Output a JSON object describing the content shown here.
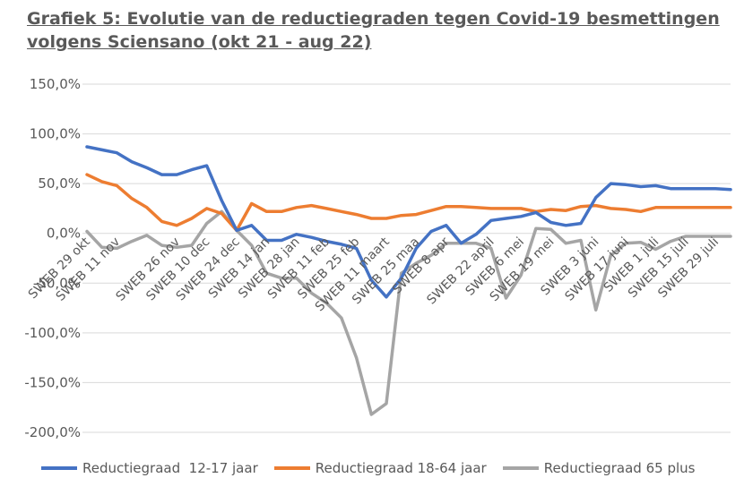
{
  "title_line1": "Grafiek 5: Evolutie van de reductiegraden tegen Covid-19 besmettingen",
  "title_line2": "volgens Sciensano (okt 21 - aug 22)",
  "chart_data": {
    "type": "line",
    "ylim": [
      -200,
      150
    ],
    "yticks": [
      150,
      100,
      50,
      0,
      -50,
      -100,
      -150,
      -200
    ],
    "ytick_labels": [
      "150,0%",
      "100,0%",
      "50,0%",
      "0,0%",
      "-50,0%",
      "-100,0%",
      "-150,0%",
      "-200,0%"
    ],
    "grid": "horizontal",
    "legend_position": "bottom",
    "n_points": 44,
    "xtick_labels": [
      {
        "index": 0,
        "label": "SWEB 29 okt"
      },
      {
        "index": 2,
        "label": "SWEB 11 nov"
      },
      {
        "index": 6,
        "label": "SWEB 26 nov"
      },
      {
        "index": 8,
        "label": "SWEB 10 dec"
      },
      {
        "index": 10,
        "label": "SWEB 24 dec"
      },
      {
        "index": 12,
        "label": "SWEB 14 jan"
      },
      {
        "index": 14,
        "label": "SWEB 28 jan"
      },
      {
        "index": 16,
        "label": "SWEB 11 feb"
      },
      {
        "index": 18,
        "label": "SWEB 25 feb"
      },
      {
        "index": 20,
        "label": "SWEB 11 maart"
      },
      {
        "index": 22,
        "label": "SWEB 25 maa"
      },
      {
        "index": 24,
        "label": "SWEB 8 apr"
      },
      {
        "index": 27,
        "label": "SWEB 22 april"
      },
      {
        "index": 29,
        "label": "SWEB 6 mei"
      },
      {
        "index": 31,
        "label": "SWEB 19 mei"
      },
      {
        "index": 34,
        "label": "SWEB 3 juni"
      },
      {
        "index": 36,
        "label": "SWEB 17 juni"
      },
      {
        "index": 38,
        "label": "SWEB 1 juli"
      },
      {
        "index": 40,
        "label": "SWEB 15 juli"
      },
      {
        "index": 42,
        "label": "SWEB 29 juli"
      }
    ],
    "series": [
      {
        "name": "Reductiegraad  12-17 jaar",
        "color": "#4472C4",
        "values": [
          87,
          84,
          81,
          72,
          66,
          59,
          59,
          64,
          68,
          33,
          3,
          8,
          -7,
          -7,
          -1,
          -4,
          -8,
          -11,
          -15,
          -47,
          -64,
          -45,
          -15,
          2,
          8,
          -10,
          -1,
          13,
          15,
          17,
          21,
          11,
          8,
          10,
          36,
          50,
          49,
          47,
          48,
          45,
          45,
          45,
          45,
          44
        ]
      },
      {
        "name": "Reductiegraad 18-64 jaar",
        "color": "#ED7D31",
        "values": [
          59,
          52,
          48,
          35,
          26,
          12,
          8,
          15,
          25,
          20,
          3,
          30,
          22,
          22,
          26,
          28,
          25,
          22,
          19,
          15,
          15,
          18,
          19,
          23,
          27,
          27,
          26,
          25,
          25,
          25,
          22,
          24,
          23,
          27,
          28,
          25,
          24,
          22,
          26,
          26,
          26,
          26,
          26,
          26
        ]
      },
      {
        "name": "Reductiegraad 65 plus",
        "color": "#A5A5A5",
        "values": [
          2,
          -14,
          -15,
          -8,
          -2,
          -12,
          -14,
          -12,
          10,
          22,
          3,
          -12,
          -40,
          -45,
          -45,
          -60,
          -70,
          -85,
          -125,
          -182,
          -171,
          -40,
          -30,
          -22,
          -10,
          -10,
          -10,
          -15,
          -65,
          -42,
          5,
          4,
          -10,
          -7,
          -77,
          -22,
          -10,
          -9,
          -16,
          -8,
          -3,
          -3,
          -3,
          -3
        ]
      }
    ]
  }
}
